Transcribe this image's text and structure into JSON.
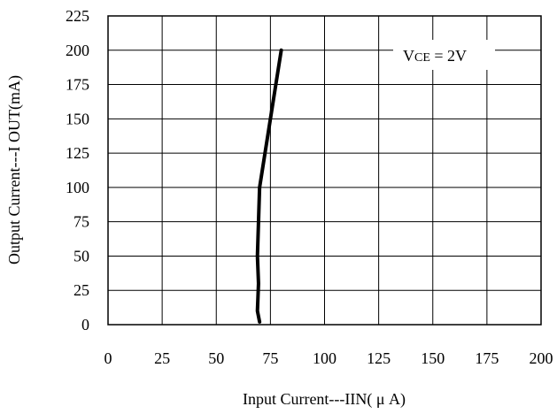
{
  "chart_data": {
    "type": "line",
    "xlabel": "Input Current---IIN( μ A)",
    "ylabel": "Output Current---I OUT(mA)",
    "xlim": [
      0,
      200
    ],
    "ylim": [
      0,
      225
    ],
    "x_ticks": [
      "0",
      "25",
      "50",
      "75",
      "100",
      "125",
      "150",
      "175",
      "200"
    ],
    "y_ticks": [
      "0",
      "25",
      "50",
      "75",
      "100",
      "125",
      "150",
      "175",
      "200",
      "225"
    ],
    "grid": true,
    "annotation": "VCE = 2V",
    "series": [
      {
        "x": [
          70,
          69,
          69.5,
          69,
          69.5,
          70,
          74,
          77,
          80
        ],
        "y": [
          2,
          10,
          30,
          50,
          75,
          100,
          140,
          170,
          200
        ],
        "color": "#000000"
      }
    ]
  }
}
